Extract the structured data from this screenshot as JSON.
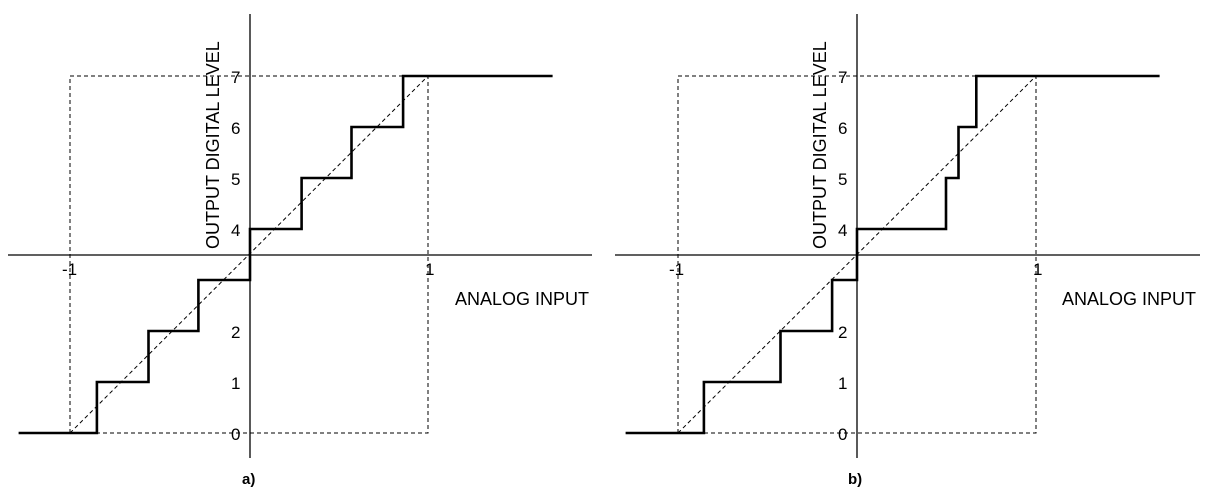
{
  "panels": [
    {
      "id": "a",
      "caption": "a)",
      "x_axis_label": "ANALOG INPUT",
      "y_axis_label": "OUTPUT DIGITAL LEVEL",
      "x_ticks": [
        "-1",
        "1"
      ],
      "y_ticks": [
        "0",
        "1",
        "2",
        "4",
        "5",
        "6",
        "7"
      ],
      "transitions": [
        -0.86,
        -0.57,
        -0.29,
        0.0,
        0.29,
        0.57,
        0.86
      ],
      "levels": [
        0,
        1,
        2,
        3,
        4,
        5,
        6,
        7
      ],
      "x_range": [
        -1.3,
        1.7
      ]
    },
    {
      "id": "b",
      "caption": "b)",
      "x_axis_label": "ANALOG INPUT",
      "y_axis_label": "OUTPUT DIGITAL LEVEL",
      "x_ticks": [
        "-1",
        "1"
      ],
      "y_ticks": [
        "0",
        "1",
        "2",
        "4",
        "5",
        "6",
        "7"
      ],
      "transitions": [
        -0.86,
        -0.43,
        -0.14,
        0.0,
        0.5,
        0.57,
        0.67
      ],
      "levels": [
        0,
        1,
        2,
        3,
        4,
        5,
        6,
        7
      ],
      "x_range": [
        -1.3,
        1.7
      ]
    }
  ]
}
